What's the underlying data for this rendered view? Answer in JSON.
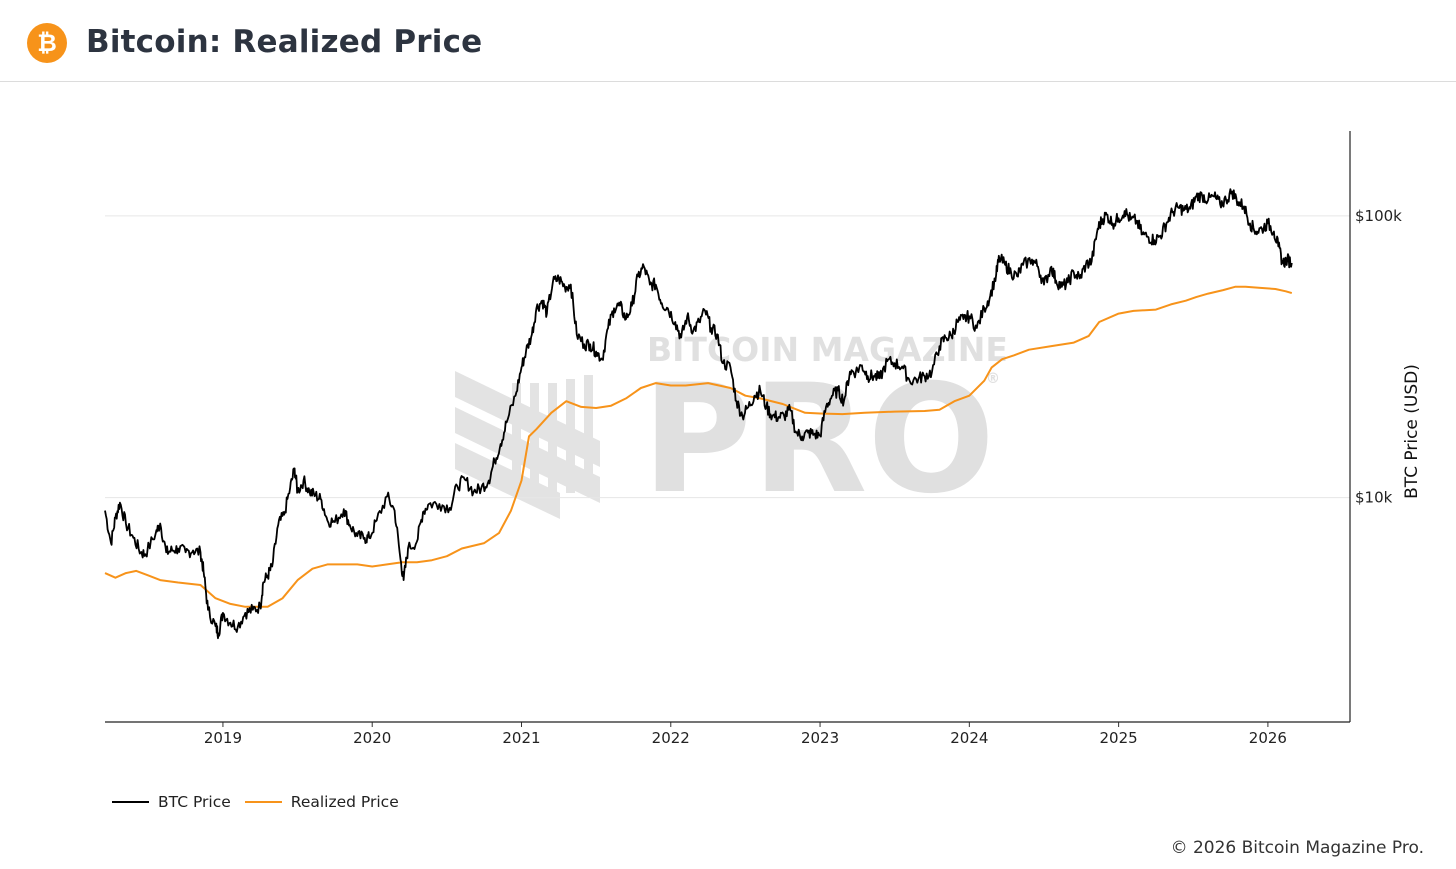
{
  "header": {
    "title": "Bitcoin: Realized Price",
    "logo_icon": "bitcoin-icon",
    "logo_color": "#f7931a",
    "logo_glyph": "₿"
  },
  "watermark": {
    "line1": "BITCOIN MAGAZINE",
    "line2": "PRO",
    "registered": "®"
  },
  "footer": {
    "copyright": "© 2026 Bitcoin Magazine Pro."
  },
  "chart_data": {
    "type": "line",
    "title": "Bitcoin: Realized Price",
    "xlabel": "",
    "ylabel": "BTC Price (USD)",
    "yscale": "log",
    "ylim": [
      1600,
      200000
    ],
    "xlim": [
      2018.21,
      2026.55
    ],
    "y_ticks": [
      {
        "value": 10000,
        "label": "$10k"
      },
      {
        "value": 100000,
        "label": "$100k"
      }
    ],
    "x_ticks": [
      {
        "value": 2019.0,
        "label": "2019"
      },
      {
        "value": 2020.0,
        "label": "2020"
      },
      {
        "value": 2021.0,
        "label": "2021"
      },
      {
        "value": 2022.0,
        "label": "2022"
      },
      {
        "value": 2023.0,
        "label": "2023"
      },
      {
        "value": 2024.0,
        "label": "2024"
      },
      {
        "value": 2025.0,
        "label": "2025"
      },
      {
        "value": 2026.0,
        "label": "2026"
      }
    ],
    "grid": true,
    "legend_position": "bottom-left",
    "series": [
      {
        "name": "BTC Price",
        "color": "#000000",
        "points": [
          [
            2018.21,
            9000
          ],
          [
            2018.25,
            6900
          ],
          [
            2018.28,
            8500
          ],
          [
            2018.31,
            9600
          ],
          [
            2018.35,
            8100
          ],
          [
            2018.4,
            7200
          ],
          [
            2018.45,
            6400
          ],
          [
            2018.48,
            6300
          ],
          [
            2018.55,
            7500
          ],
          [
            2018.58,
            8100
          ],
          [
            2018.62,
            6400
          ],
          [
            2018.66,
            6500
          ],
          [
            2018.7,
            6600
          ],
          [
            2018.75,
            6400
          ],
          [
            2018.8,
            6500
          ],
          [
            2018.85,
            6400
          ],
          [
            2018.87,
            5500
          ],
          [
            2018.9,
            4000
          ],
          [
            2018.95,
            3500
          ],
          [
            2018.97,
            3300
          ],
          [
            2019.0,
            3900
          ],
          [
            2019.05,
            3600
          ],
          [
            2019.1,
            3500
          ],
          [
            2019.15,
            3900
          ],
          [
            2019.2,
            4000
          ],
          [
            2019.25,
            4100
          ],
          [
            2019.27,
            5000
          ],
          [
            2019.3,
            5300
          ],
          [
            2019.33,
            5700
          ],
          [
            2019.37,
            8000
          ],
          [
            2019.41,
            8700
          ],
          [
            2019.45,
            10800
          ],
          [
            2019.48,
            12700
          ],
          [
            2019.5,
            10500
          ],
          [
            2019.54,
            11500
          ],
          [
            2019.58,
            10500
          ],
          [
            2019.62,
            10200
          ],
          [
            2019.66,
            9800
          ],
          [
            2019.7,
            8300
          ],
          [
            2019.75,
            8200
          ],
          [
            2019.81,
            9100
          ],
          [
            2019.85,
            8000
          ],
          [
            2019.9,
            7300
          ],
          [
            2019.95,
            7200
          ],
          [
            2019.98,
            7200
          ],
          [
            2020.03,
            8300
          ],
          [
            2020.1,
            10100
          ],
          [
            2020.15,
            9000
          ],
          [
            2020.19,
            6000
          ],
          [
            2020.21,
            5100
          ],
          [
            2020.24,
            6600
          ],
          [
            2020.3,
            7000
          ],
          [
            2020.34,
            8900
          ],
          [
            2020.38,
            9500
          ],
          [
            2020.45,
            9500
          ],
          [
            2020.52,
            9200
          ],
          [
            2020.57,
            11000
          ],
          [
            2020.62,
            11600
          ],
          [
            2020.68,
            10500
          ],
          [
            2020.73,
            10800
          ],
          [
            2020.78,
            11500
          ],
          [
            2020.82,
            13500
          ],
          [
            2020.86,
            15500
          ],
          [
            2020.9,
            18500
          ],
          [
            2020.96,
            23000
          ],
          [
            2021.0,
            29000
          ],
          [
            2021.03,
            33000
          ],
          [
            2021.07,
            38000
          ],
          [
            2021.1,
            47000
          ],
          [
            2021.14,
            50000
          ],
          [
            2021.17,
            45000
          ],
          [
            2021.21,
            58000
          ],
          [
            2021.25,
            60000
          ],
          [
            2021.29,
            56000
          ],
          [
            2021.33,
            57000
          ],
          [
            2021.37,
            38000
          ],
          [
            2021.42,
            35000
          ],
          [
            2021.46,
            35000
          ],
          [
            2021.5,
            33000
          ],
          [
            2021.54,
            31000
          ],
          [
            2021.58,
            40000
          ],
          [
            2021.62,
            47000
          ],
          [
            2021.66,
            48000
          ],
          [
            2021.7,
            43000
          ],
          [
            2021.74,
            48000
          ],
          [
            2021.78,
            61000
          ],
          [
            2021.82,
            66000
          ],
          [
            2021.86,
            57000
          ],
          [
            2021.9,
            57000
          ],
          [
            2021.94,
            49000
          ],
          [
            2021.98,
            47000
          ],
          [
            2022.03,
            42000
          ],
          [
            2022.07,
            37000
          ],
          [
            2022.11,
            44000
          ],
          [
            2022.15,
            39000
          ],
          [
            2022.19,
            42000
          ],
          [
            2022.23,
            46000
          ],
          [
            2022.27,
            40000
          ],
          [
            2022.31,
            38000
          ],
          [
            2022.35,
            30000
          ],
          [
            2022.4,
            29000
          ],
          [
            2022.44,
            22000
          ],
          [
            2022.48,
            19500
          ],
          [
            2022.52,
            21000
          ],
          [
            2022.56,
            23000
          ],
          [
            2022.6,
            24000
          ],
          [
            2022.64,
            21000
          ],
          [
            2022.68,
            19500
          ],
          [
            2022.72,
            19300
          ],
          [
            2022.76,
            19500
          ],
          [
            2022.8,
            20500
          ],
          [
            2022.84,
            17000
          ],
          [
            2022.88,
            16500
          ],
          [
            2022.92,
            17000
          ],
          [
            2022.96,
            16800
          ],
          [
            2023.0,
            16600
          ],
          [
            2023.04,
            21000
          ],
          [
            2023.08,
            23000
          ],
          [
            2023.12,
            24000
          ],
          [
            2023.16,
            22000
          ],
          [
            2023.2,
            28000
          ],
          [
            2023.24,
            28000
          ],
          [
            2023.28,
            29500
          ],
          [
            2023.32,
            27000
          ],
          [
            2023.36,
            27000
          ],
          [
            2023.4,
            26500
          ],
          [
            2023.45,
            30500
          ],
          [
            2023.5,
            30000
          ],
          [
            2023.55,
            29200
          ],
          [
            2023.6,
            26000
          ],
          [
            2023.66,
            26500
          ],
          [
            2023.7,
            27000
          ],
          [
            2023.75,
            28000
          ],
          [
            2023.8,
            34500
          ],
          [
            2023.84,
            37000
          ],
          [
            2023.88,
            37500
          ],
          [
            2023.92,
            42000
          ],
          [
            2023.96,
            43000
          ],
          [
            2024.0,
            44000
          ],
          [
            2024.05,
            40000
          ],
          [
            2024.1,
            47000
          ],
          [
            2024.14,
            52000
          ],
          [
            2024.18,
            62000
          ],
          [
            2024.2,
            71000
          ],
          [
            2024.24,
            67000
          ],
          [
            2024.28,
            63000
          ],
          [
            2024.32,
            61000
          ],
          [
            2024.36,
            67000
          ],
          [
            2024.42,
            70000
          ],
          [
            2024.46,
            66000
          ],
          [
            2024.5,
            57000
          ],
          [
            2024.55,
            66000
          ],
          [
            2024.58,
            59000
          ],
          [
            2024.62,
            56000
          ],
          [
            2024.66,
            58000
          ],
          [
            2024.7,
            63000
          ],
          [
            2024.74,
            60000
          ],
          [
            2024.78,
            67000
          ],
          [
            2024.82,
            69000
          ],
          [
            2024.86,
            90000
          ],
          [
            2024.89,
            97000
          ],
          [
            2024.92,
            101000
          ],
          [
            2024.96,
            94000
          ],
          [
            2025.0,
            98000
          ],
          [
            2025.04,
            104000
          ],
          [
            2025.08,
            97000
          ],
          [
            2025.12,
            96000
          ],
          [
            2025.16,
            86000
          ],
          [
            2025.2,
            84000
          ],
          [
            2025.24,
            82000
          ],
          [
            2025.28,
            85000
          ],
          [
            2025.32,
            94000
          ],
          [
            2025.36,
            103000
          ],
          [
            2025.4,
            107000
          ],
          [
            2025.44,
            105000
          ],
          [
            2025.48,
            106000
          ],
          [
            2025.52,
            117000
          ],
          [
            2025.56,
            118000
          ],
          [
            2025.6,
            114000
          ],
          [
            2025.64,
            117000
          ],
          [
            2025.68,
            110000
          ],
          [
            2025.72,
            114000
          ],
          [
            2025.76,
            122000
          ],
          [
            2025.8,
            112000
          ],
          [
            2025.84,
            108000
          ],
          [
            2025.88,
            94000
          ],
          [
            2025.92,
            88000
          ],
          [
            2025.96,
            90000
          ],
          [
            2026.0,
            94000
          ],
          [
            2026.04,
            88000
          ],
          [
            2026.07,
            78000
          ],
          [
            2026.1,
            68000
          ],
          [
            2026.13,
            70000
          ],
          [
            2026.16,
            68000
          ]
        ]
      },
      {
        "name": "Realized Price",
        "color": "#f7931a",
        "points": [
          [
            2018.21,
            5400
          ],
          [
            2018.28,
            5200
          ],
          [
            2018.35,
            5400
          ],
          [
            2018.42,
            5500
          ],
          [
            2018.5,
            5300
          ],
          [
            2018.58,
            5100
          ],
          [
            2018.7,
            5000
          ],
          [
            2018.85,
            4900
          ],
          [
            2018.95,
            4400
          ],
          [
            2019.05,
            4200
          ],
          [
            2019.15,
            4100
          ],
          [
            2019.25,
            4100
          ],
          [
            2019.3,
            4100
          ],
          [
            2019.4,
            4400
          ],
          [
            2019.5,
            5100
          ],
          [
            2019.6,
            5600
          ],
          [
            2019.7,
            5800
          ],
          [
            2019.8,
            5800
          ],
          [
            2019.9,
            5800
          ],
          [
            2020.0,
            5700
          ],
          [
            2020.1,
            5800
          ],
          [
            2020.2,
            5900
          ],
          [
            2020.3,
            5900
          ],
          [
            2020.4,
            6000
          ],
          [
            2020.5,
            6200
          ],
          [
            2020.6,
            6600
          ],
          [
            2020.75,
            6900
          ],
          [
            2020.85,
            7500
          ],
          [
            2020.93,
            9000
          ],
          [
            2021.0,
            11500
          ],
          [
            2021.05,
            16500
          ],
          [
            2021.1,
            17500
          ],
          [
            2021.2,
            20000
          ],
          [
            2021.3,
            22000
          ],
          [
            2021.4,
            21000
          ],
          [
            2021.5,
            20800
          ],
          [
            2021.6,
            21200
          ],
          [
            2021.7,
            22500
          ],
          [
            2021.8,
            24500
          ],
          [
            2021.9,
            25500
          ],
          [
            2022.0,
            25000
          ],
          [
            2022.1,
            25000
          ],
          [
            2022.25,
            25500
          ],
          [
            2022.4,
            24500
          ],
          [
            2022.5,
            23000
          ],
          [
            2022.6,
            22500
          ],
          [
            2022.75,
            21500
          ],
          [
            2022.9,
            20000
          ],
          [
            2023.0,
            19900
          ],
          [
            2023.15,
            19800
          ],
          [
            2023.3,
            20000
          ],
          [
            2023.5,
            20200
          ],
          [
            2023.7,
            20300
          ],
          [
            2023.8,
            20500
          ],
          [
            2023.9,
            22000
          ],
          [
            2024.0,
            23000
          ],
          [
            2024.1,
            26000
          ],
          [
            2024.15,
            29000
          ],
          [
            2024.22,
            31000
          ],
          [
            2024.3,
            32000
          ],
          [
            2024.4,
            33500
          ],
          [
            2024.55,
            34500
          ],
          [
            2024.7,
            35500
          ],
          [
            2024.8,
            37500
          ],
          [
            2024.87,
            42000
          ],
          [
            2025.0,
            45000
          ],
          [
            2025.1,
            46000
          ],
          [
            2025.25,
            46500
          ],
          [
            2025.35,
            48500
          ],
          [
            2025.45,
            50000
          ],
          [
            2025.52,
            51500
          ],
          [
            2025.6,
            53000
          ],
          [
            2025.7,
            54500
          ],
          [
            2025.78,
            56000
          ],
          [
            2025.85,
            56000
          ],
          [
            2025.95,
            55500
          ],
          [
            2026.05,
            55000
          ],
          [
            2026.12,
            54000
          ],
          [
            2026.16,
            53200
          ]
        ]
      }
    ]
  }
}
